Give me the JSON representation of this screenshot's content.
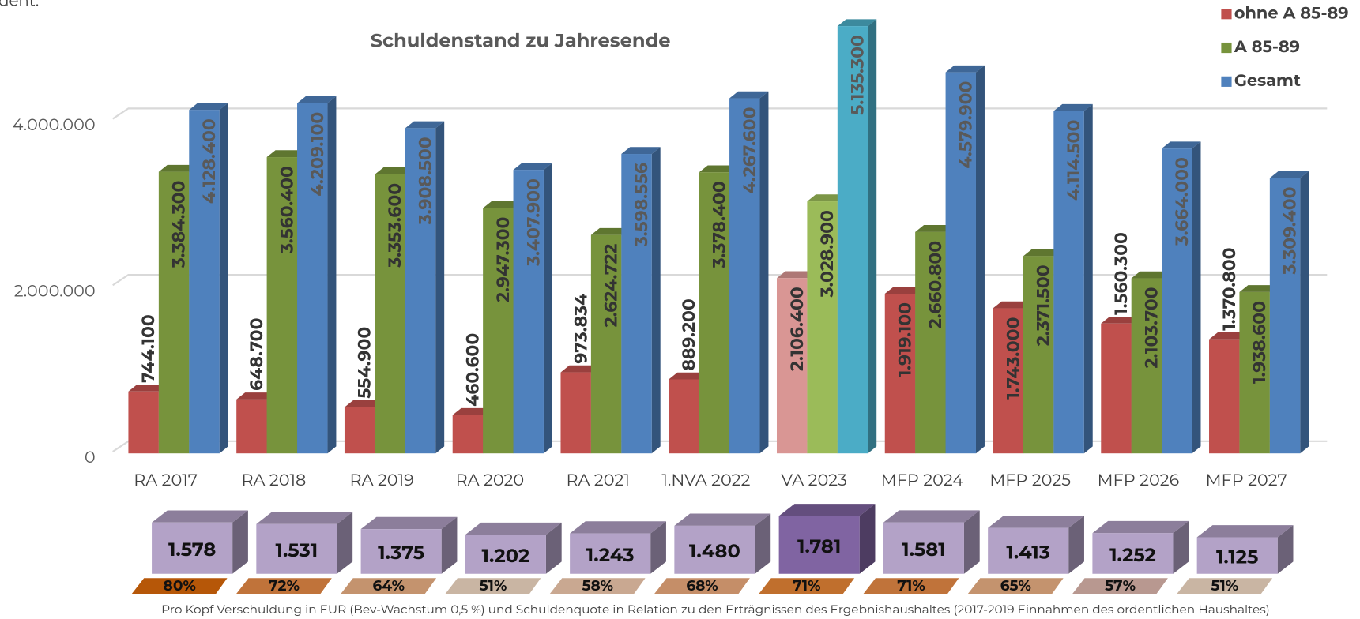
{
  "chart_data": {
    "type": "bar3d",
    "annotation": "ordent.",
    "title": "Schuldenstand zu Jahresende",
    "categories": [
      "RA 2017",
      "RA 2018",
      "RA 2019",
      "RA 2020",
      "RA 2021",
      "1.NVA 2022",
      "VA 2023",
      "MFP 2024",
      "MFP 2025",
      "MFP 2026",
      "MFP 2027"
    ],
    "series": [
      {
        "name": "ohne A 85-89",
        "color": "#c0504d",
        "colors": [
          "#c0504d",
          "#c0504d",
          "#c0504d",
          "#c0504d",
          "#c0504d",
          "#c0504d",
          "#d99694",
          "#c0504d",
          "#c0504d",
          "#c0504d",
          "#c0504d"
        ],
        "values": [
          744100,
          648700,
          554900,
          460600,
          973834,
          889200,
          2106400,
          1919100,
          1743000,
          1560300,
          1370800
        ],
        "value_labels": [
          "744.100",
          "648.700",
          "554.900",
          "460.600",
          "973.834",
          "889.200",
          "2.106.400",
          "1.919.100",
          "1.743.000",
          "1.560.300",
          "1.370.800"
        ]
      },
      {
        "name": "A 85-89",
        "color": "#77933c",
        "colors": [
          "#77933c",
          "#77933c",
          "#77933c",
          "#77933c",
          "#77933c",
          "#77933c",
          "#9bbb59",
          "#77933c",
          "#77933c",
          "#77933c",
          "#77933c"
        ],
        "values": [
          3384300,
          3560400,
          3353600,
          2947300,
          2624722,
          3378400,
          3028900,
          2660800,
          2371500,
          2103700,
          1938600
        ],
        "value_labels": [
          "3.384.300",
          "3.560.400",
          "3.353.600",
          "2.947.300",
          "2.624.722",
          "3.378.400",
          "3.028.900",
          "2.660.800",
          "2.371.500",
          "2.103.700",
          "1.938.600"
        ]
      },
      {
        "name": "Gesamt",
        "color": "#4f81bd",
        "colors": [
          "#4f81bd",
          "#4f81bd",
          "#4f81bd",
          "#4f81bd",
          "#4f81bd",
          "#4f81bd",
          "#4bacc6",
          "#4f81bd",
          "#4f81bd",
          "#4f81bd",
          "#4f81bd"
        ],
        "values": [
          4128400,
          4209100,
          3908500,
          3407900,
          3598556,
          4267600,
          5135300,
          4579900,
          4114500,
          3664000,
          3309400
        ],
        "value_labels": [
          "4.128.400",
          "4.209.100",
          "3.908.500",
          "3.407.900",
          "3.598.556",
          "4.267.600",
          "5.135.300",
          "4.579.900",
          "4.114.500",
          "3.664.000",
          "3.309.400"
        ]
      }
    ],
    "ylim": [
      0,
      5500000
    ],
    "yticks": [
      0,
      {
        "value": 2000000,
        "label": "2.000.000"
      },
      {
        "value": 4000000,
        "label": "4.000.000"
      }
    ],
    "grid": true,
    "legend": "top-right",
    "per_capita": {
      "values": [
        1578,
        1531,
        1375,
        1202,
        1243,
        1480,
        1781,
        1581,
        1413,
        1252,
        1125
      ],
      "value_labels": [
        "1.578",
        "1.531",
        "1.375",
        "1.202",
        "1.243",
        "1.480",
        "1.781",
        "1.581",
        "1.413",
        "1.252",
        "1.125"
      ],
      "colors": [
        "#b3a2c7",
        "#b3a2c7",
        "#b3a2c7",
        "#b3a2c7",
        "#b3a2c7",
        "#b3a2c7",
        "#8064a2",
        "#b3a2c7",
        "#b3a2c7",
        "#b3a2c7",
        "#b3a2c7"
      ]
    },
    "debt_ratio": {
      "values": [
        80,
        72,
        64,
        51,
        58,
        68,
        71,
        71,
        65,
        57,
        51
      ],
      "value_labels": [
        "80%",
        "72%",
        "64%",
        "51%",
        "58%",
        "68%",
        "71%",
        "71%",
        "65%",
        "57%",
        "51%"
      ],
      "colors": [
        "#b65708",
        "#c0733a",
        "#c4936e",
        "#c9b5a3",
        "#c9a891",
        "#c58e68",
        "#c06f2d",
        "#c0733a",
        "#c4936e",
        "#b89890",
        "#c9b5a3"
      ]
    },
    "footnote": "Pro Kopf Verschuldung in EUR (Bev-Wachstum 0,5 %) und Schuldenquote in Relation zu den Erträgnissen des Ergebnishaushaltes (2017-2019 Einnahmen des ordentlichen Haushaltes)"
  }
}
